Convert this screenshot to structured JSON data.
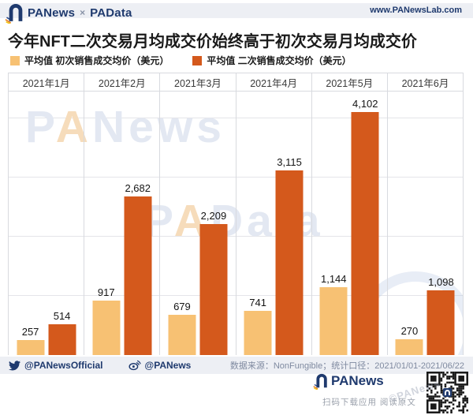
{
  "header": {
    "brand": "PANews",
    "separator": "×",
    "brand2": "PAData",
    "url": "www.PANewsLab.com"
  },
  "chart_data": {
    "type": "bar",
    "title": "今年NFT二次交易月均成交价始终高于初次交易月均成交价",
    "categories": [
      "2021年1月",
      "2021年2月",
      "2021年3月",
      "2021年4月",
      "2021年5月",
      "2021年6月"
    ],
    "series": [
      {
        "name": "平均值 初次销售成交均价（美元）",
        "color": "#f7c173",
        "values": [
          257,
          917,
          679,
          741,
          1144,
          270
        ]
      },
      {
        "name": "平均值 二次销售成交均价（美元）",
        "color": "#d4591c",
        "values": [
          514,
          2682,
          2209,
          3115,
          4102,
          1098
        ]
      }
    ],
    "ylim": [
      0,
      4450
    ],
    "gridline_interval": 1000,
    "grid": "horizontal",
    "legend_position": "top-left",
    "value_labels": true,
    "unit": "美元"
  },
  "watermarks": {
    "wm1": "PANews",
    "wm2": "PAData",
    "stamp": "©PANews"
  },
  "footer": {
    "twitter_handle": "@PANewsOfficial",
    "weibo_handle": "@PANews",
    "source": "数据来源：NonFungible；统计口径：2021/01/01-2021/06/22"
  },
  "bottom": {
    "brand": "PANews",
    "caption": "扫码下载应用 阅读原文"
  },
  "colors": {
    "primary_bar": "#f7c173",
    "secondary_bar": "#d4591c",
    "navy": "#1f3a6e",
    "band": "#edeff4",
    "gridline": "#e4e5e9"
  }
}
